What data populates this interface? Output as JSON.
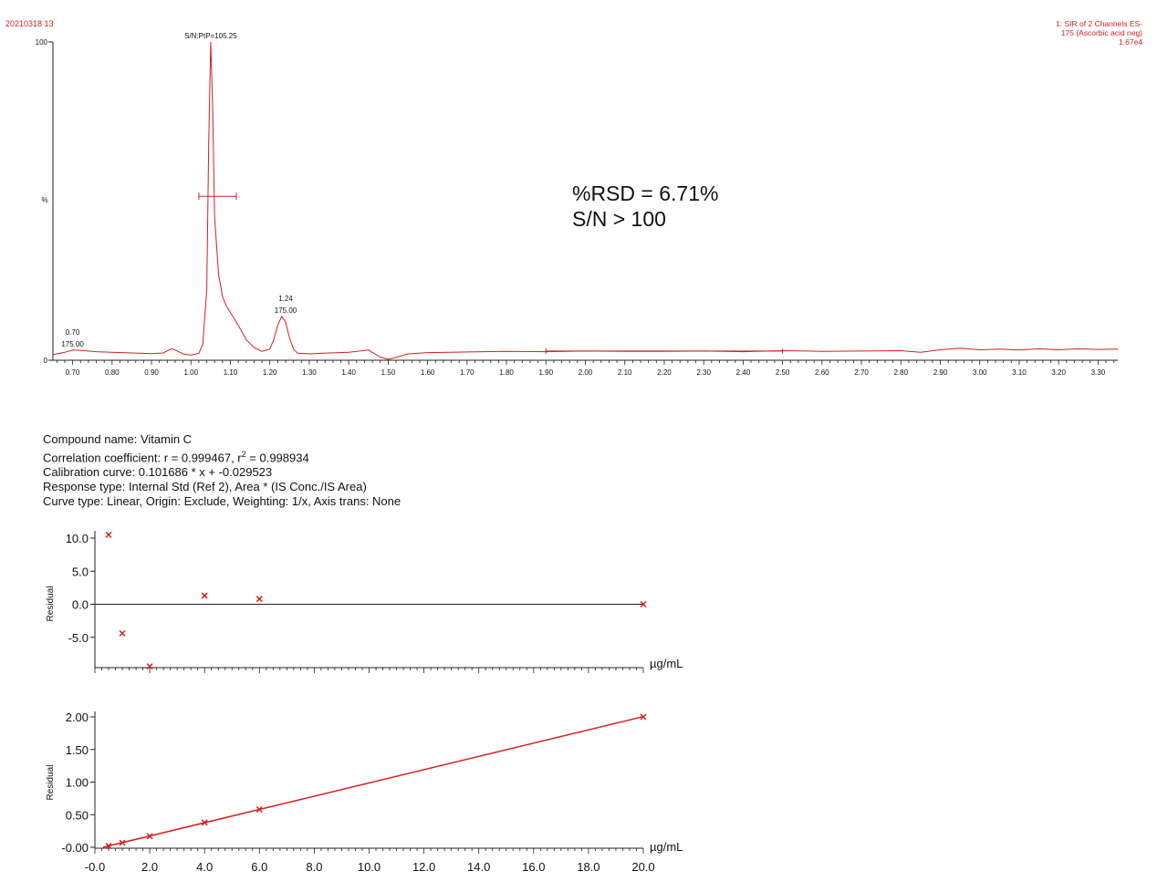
{
  "header": {
    "left_label": "20210318 13",
    "right_lines": [
      "1: SIR of 2 Channels ES-",
      "175 (Ascorbic acid neg)",
      "1.67e4"
    ]
  },
  "annotation": {
    "line1": "%RSD = 6.71%",
    "line2": "S/N > 100"
  },
  "info": {
    "compound": "Compound name: Vitamin C",
    "correlation_prefix": "Correlation coefficient: r = 0.999467, r",
    "correlation_sup": "2",
    "correlation_suffix": " = 0.998934",
    "calibration": "Calibration curve: 0.101686 * x + -0.029523",
    "response": "Response type: Internal Std (Ref 2), Area * (IS Conc./IS Area)",
    "curve": "Curve type: Linear, Origin: Exclude, Weighting: 1/x, Axis trans: None"
  },
  "colors": {
    "trace": "#d42020",
    "axis": "#222222",
    "text": "#111111"
  },
  "chart_data": [
    {
      "type": "line",
      "title": "",
      "xlabel": "",
      "ylabel": "%",
      "xlim": [
        0.65,
        3.35
      ],
      "ylim": [
        0,
        100
      ],
      "ytick_labels": [
        "100",
        "0"
      ],
      "xtick_labels": [
        "0.70",
        "0.80",
        "0.90",
        "1.00",
        "1.10",
        "1.20",
        "1.30",
        "1.40",
        "1.50",
        "1.60",
        "1.70",
        "1.80",
        "1.90",
        "2.00",
        "2.10",
        "2.20",
        "2.30",
        "2.40",
        "2.50",
        "2.60",
        "2.70",
        "2.80",
        "2.90",
        "3.00",
        "3.10",
        "3.20",
        "3.30"
      ],
      "series": [
        {
          "x": [
            0.65,
            0.68,
            0.7,
            0.73,
            0.76,
            0.8,
            0.85,
            0.9,
            0.93,
            0.95,
            0.96,
            0.98,
            1.0,
            1.02,
            1.03,
            1.04,
            1.045,
            1.05,
            1.055,
            1.06,
            1.07,
            1.08,
            1.09,
            1.1,
            1.12,
            1.14,
            1.16,
            1.18,
            1.2,
            1.21,
            1.22,
            1.23,
            1.24,
            1.25,
            1.26,
            1.27,
            1.3,
            1.35,
            1.4,
            1.45,
            1.48,
            1.5,
            1.52,
            1.55,
            1.6,
            1.7,
            1.8,
            1.9,
            2.0,
            2.1,
            2.2,
            2.3,
            2.4,
            2.5,
            2.6,
            2.7,
            2.8,
            2.85,
            2.9,
            2.95,
            3.0,
            3.05,
            3.1,
            3.15,
            3.2,
            3.25,
            3.3,
            3.35
          ],
          "y": [
            1.8,
            2.5,
            3.2,
            3.0,
            2.7,
            2.5,
            2.3,
            2.1,
            2.3,
            3.6,
            3.2,
            2.0,
            1.6,
            2.2,
            5.0,
            22,
            68,
            100,
            80,
            45,
            27,
            20,
            17,
            15,
            11,
            6.5,
            4.0,
            2.8,
            3.5,
            6.5,
            11,
            13.8,
            12,
            7,
            3.5,
            2.2,
            2.0,
            2.3,
            2.5,
            3.2,
            1.0,
            0.3,
            0.9,
            2.0,
            2.4,
            2.6,
            2.8,
            2.7,
            2.9,
            2.8,
            2.8,
            2.9,
            2.7,
            3.0,
            2.8,
            2.9,
            3.0,
            2.5,
            3.3,
            3.8,
            3.3,
            3.5,
            3.2,
            3.6,
            3.3,
            3.6,
            3.4,
            3.5
          ]
        }
      ],
      "peaks": [
        {
          "x": 0.7,
          "label_lines": [
            "0.70",
            "175.00"
          ]
        },
        {
          "x": 1.05,
          "label_lines": [
            "S/N:PtP=105.25"
          ]
        },
        {
          "x": 1.24,
          "label_lines": [
            "1.24",
            "175.00"
          ]
        }
      ]
    },
    {
      "type": "scatter",
      "title": "",
      "xlabel": "µg/mL",
      "ylabel": "Residual",
      "xlim": [
        0,
        20
      ],
      "ylim": [
        -9.5,
        10.5
      ],
      "ytick_labels": [
        "10.0",
        "5.0",
        "0.0",
        "-5.0"
      ],
      "series": [
        {
          "x": [
            0.5,
            1.0,
            2.0,
            4.0,
            6.0,
            20.0
          ],
          "y": [
            10.5,
            -4.4,
            -9.4,
            1.3,
            0.8,
            0.0
          ]
        }
      ]
    },
    {
      "type": "scatter",
      "title": "",
      "xlabel": "µg/mL",
      "ylabel": "Residual",
      "xlim": [
        0,
        20
      ],
      "ylim": [
        -0.02,
        2.02
      ],
      "ytick_labels": [
        "2.00",
        "1.50",
        "1.00",
        "0.50",
        "-0.00"
      ],
      "xtick_labels": [
        "-0.0",
        "2.0",
        "4.0",
        "6.0",
        "8.0",
        "10.0",
        "12.0",
        "14.0",
        "16.0",
        "18.0",
        "20.0"
      ],
      "fit_line": {
        "slope": 0.101686,
        "intercept": -0.029523
      },
      "series": [
        {
          "x": [
            0.5,
            1.0,
            2.0,
            4.0,
            6.0,
            20.0
          ],
          "y": [
            0.02,
            0.07,
            0.17,
            0.38,
            0.58,
            2.0
          ]
        }
      ]
    }
  ]
}
